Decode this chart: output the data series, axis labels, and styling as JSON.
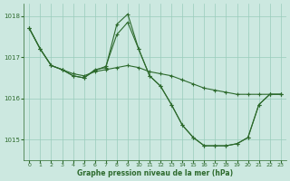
{
  "bg_color": "#cce8e0",
  "line_color": "#2d6a2d",
  "grid_color": "#99ccbb",
  "xlabel": "Graphe pression niveau de la mer (hPa)",
  "xlim": [
    -0.5,
    23.5
  ],
  "ylim": [
    1014.5,
    1018.3
  ],
  "yticks": [
    1015,
    1016,
    1017,
    1018
  ],
  "xtick_labels": [
    "0",
    "1",
    "2",
    "3",
    "4",
    "5",
    "6",
    "7",
    "8",
    "9",
    "10",
    "11",
    "12",
    "13",
    "14",
    "15",
    "16",
    "17",
    "18",
    "19",
    "20",
    "21",
    "22",
    "23"
  ],
  "series": [
    {
      "x": [
        0,
        1,
        2,
        3,
        4,
        5,
        6,
        7,
        8,
        9,
        10,
        11,
        12,
        13,
        14,
        15,
        16,
        17,
        18,
        19,
        20,
        21,
        22,
        23
      ],
      "y": [
        1017.7,
        1017.2,
        1016.8,
        1016.7,
        1016.6,
        1016.55,
        1016.65,
        1016.7,
        1016.75,
        1016.8,
        1016.75,
        1016.65,
        1016.6,
        1016.55,
        1016.45,
        1016.35,
        1016.25,
        1016.2,
        1016.15,
        1016.1,
        1016.1,
        1016.1,
        1016.1,
        1016.1
      ]
    },
    {
      "x": [
        0,
        1,
        2,
        3,
        4,
        5,
        6,
        7,
        8,
        9,
        10,
        11,
        12,
        13,
        14,
        15,
        16,
        17,
        18,
        19,
        20,
        21,
        22,
        23
      ],
      "y": [
        1017.7,
        1017.2,
        1016.8,
        1016.7,
        1016.55,
        1016.5,
        1016.7,
        1016.75,
        1017.8,
        1018.05,
        1017.2,
        1016.55,
        1016.3,
        1015.85,
        1015.35,
        1015.05,
        1014.85,
        1014.85,
        1014.85,
        1014.9,
        1015.05,
        1015.85,
        1016.1,
        1016.1
      ]
    },
    {
      "x": [
        0,
        1,
        2,
        3,
        4,
        5,
        6,
        7,
        8,
        9,
        10,
        11,
        12,
        13,
        14,
        15,
        16,
        17,
        18,
        19,
        20,
        21,
        22,
        23
      ],
      "y": [
        1017.7,
        1017.2,
        1016.8,
        1016.7,
        1016.55,
        1016.5,
        1016.68,
        1016.78,
        1017.55,
        1017.85,
        1017.2,
        1016.55,
        1016.3,
        1015.85,
        1015.35,
        1015.05,
        1014.85,
        1014.85,
        1014.85,
        1014.9,
        1015.05,
        1015.85,
        1016.1,
        1016.1
      ]
    }
  ]
}
